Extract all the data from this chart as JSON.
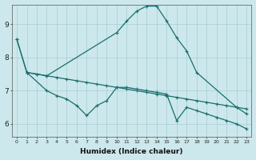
{
  "xlabel": "Humidex (Indice chaleur)",
  "bg_color": "#cce8ec",
  "line_color": "#1a6e6e",
  "grid_color": "#a8cdd4",
  "xlim": [
    -0.5,
    23.5
  ],
  "ylim": [
    5.6,
    9.6
  ],
  "xticks": [
    0,
    1,
    2,
    3,
    4,
    5,
    6,
    7,
    8,
    9,
    10,
    11,
    12,
    13,
    14,
    15,
    16,
    17,
    18,
    19,
    20,
    21,
    22,
    23
  ],
  "yticks": [
    6,
    7,
    8,
    9
  ],
  "line1_x": [
    0,
    1,
    2,
    3,
    4,
    5,
    6,
    7,
    8,
    9,
    10,
    11,
    12,
    13,
    14,
    15,
    16,
    17,
    18,
    19,
    20,
    21,
    22,
    23
  ],
  "line1_y": [
    8.55,
    7.55,
    7.5,
    7.45,
    7.4,
    7.35,
    7.3,
    7.25,
    7.2,
    7.15,
    7.1,
    7.05,
    7.0,
    6.95,
    6.9,
    6.85,
    6.8,
    6.75,
    6.7,
    6.65,
    6.6,
    6.55,
    6.5,
    6.45
  ],
  "line2_x": [
    0,
    1,
    2,
    3,
    10,
    11,
    12,
    13,
    14,
    15,
    16,
    17,
    18,
    22,
    23
  ],
  "line2_y": [
    8.55,
    7.55,
    7.5,
    7.45,
    8.75,
    9.1,
    9.4,
    9.55,
    9.55,
    9.1,
    8.6,
    8.2,
    7.55,
    6.5,
    6.3
  ],
  "line3_x": [
    1,
    3,
    4,
    5,
    6,
    7,
    8,
    9,
    10,
    11,
    12,
    13,
    14,
    15,
    16,
    17,
    18,
    19,
    20,
    21,
    22,
    23
  ],
  "line3_y": [
    7.55,
    7.0,
    6.85,
    6.75,
    6.55,
    6.25,
    6.55,
    6.7,
    7.1,
    7.1,
    7.05,
    7.0,
    6.95,
    6.9,
    6.1,
    6.5,
    6.4,
    6.3,
    6.2,
    6.1,
    6.0,
    5.85
  ]
}
